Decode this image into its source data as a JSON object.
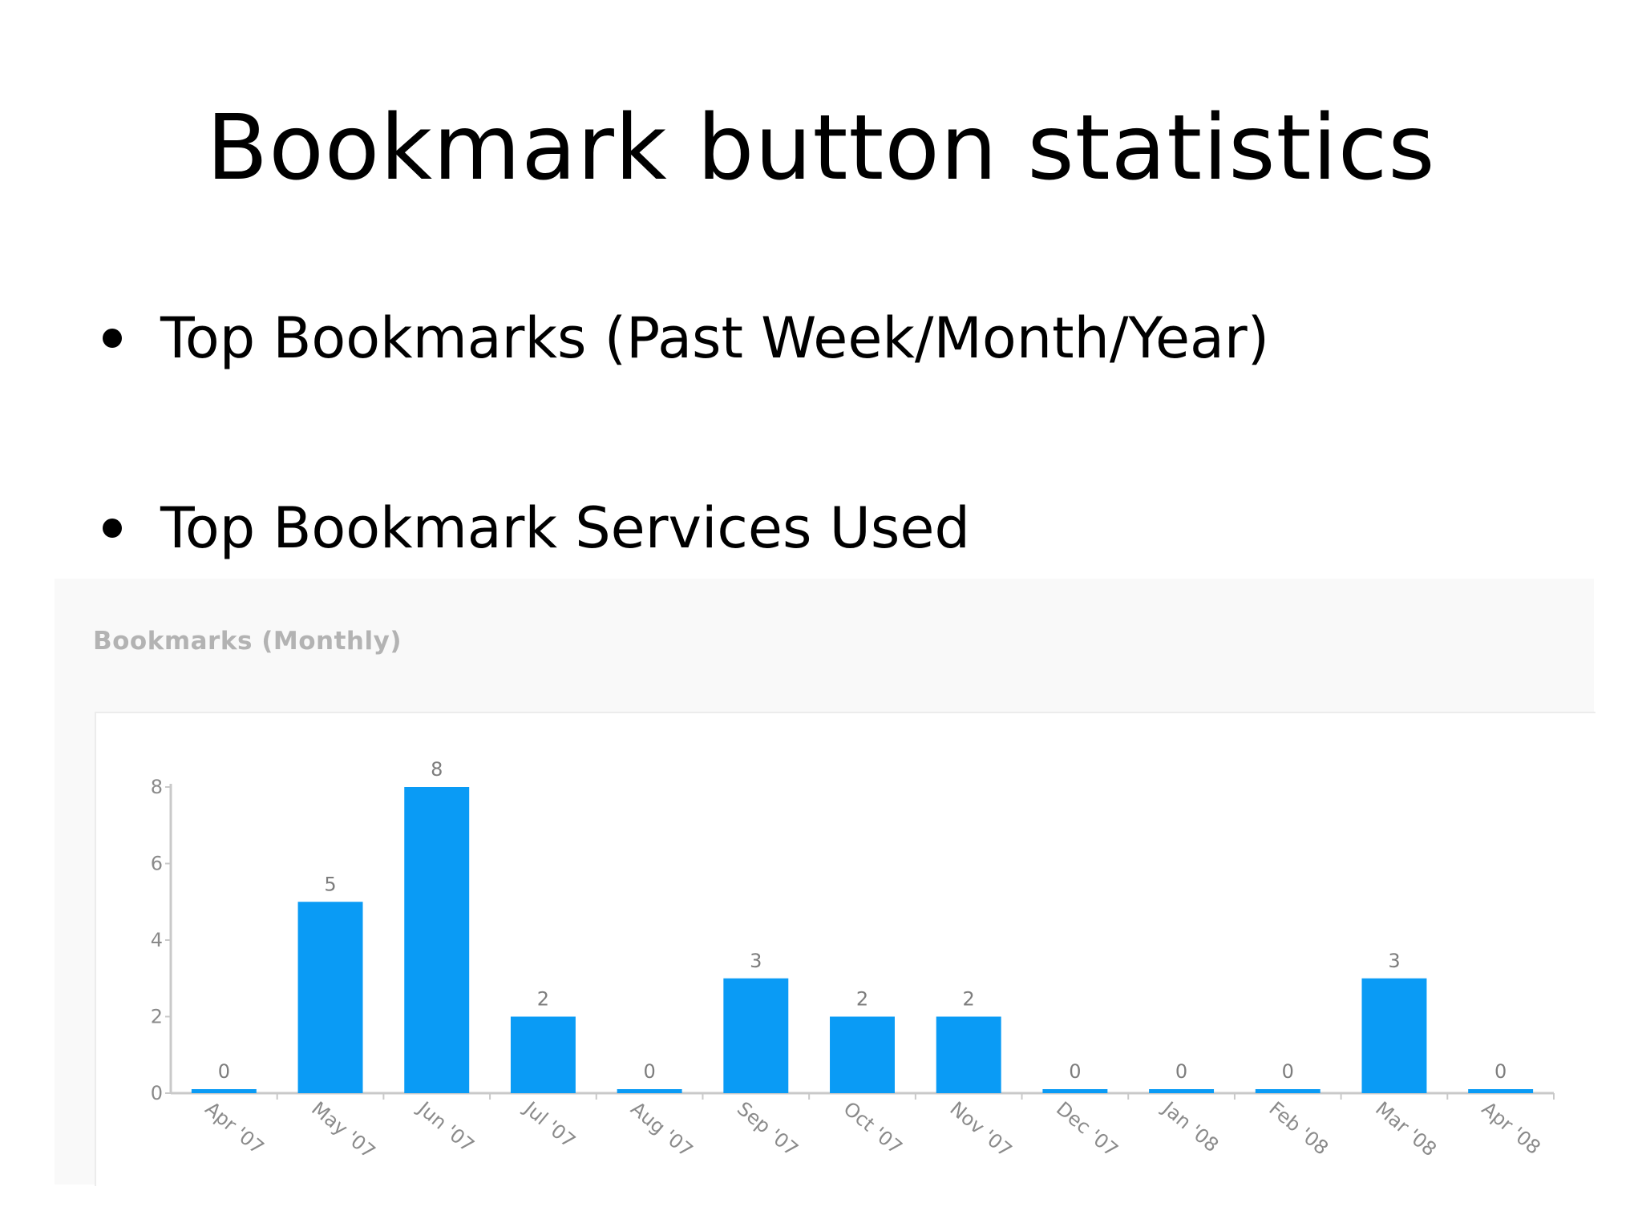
{
  "slide": {
    "title": "Bookmark button statistics",
    "bullets": [
      "Top Bookmarks (Past Week/Month/Year)",
      "Top Bookmark Services Used"
    ]
  },
  "chart_data": {
    "type": "bar",
    "title": "Bookmarks (Monthly)",
    "categories": [
      "Apr '07",
      "May '07",
      "Jun '07",
      "Jul '07",
      "Aug '07",
      "Sep '07",
      "Oct '07",
      "Nov '07",
      "Dec '07",
      "Jan '08",
      "Feb '08",
      "Mar '08",
      "Apr '08"
    ],
    "values": [
      0,
      5,
      8,
      2,
      0,
      3,
      2,
      2,
      0,
      0,
      0,
      3,
      0
    ],
    "ylim": [
      0,
      8
    ],
    "yticks": [
      0,
      2,
      4,
      6,
      8
    ],
    "xlabel": "",
    "ylabel": "",
    "data_labels": true,
    "grid": false,
    "bar_color": "#0a9bf5",
    "axis_color": "#c9c9c9"
  }
}
